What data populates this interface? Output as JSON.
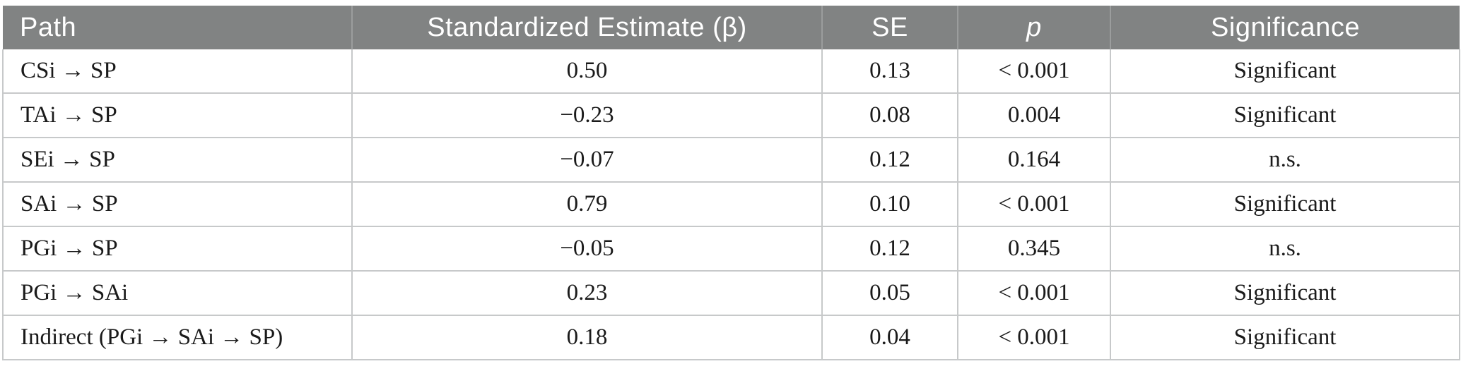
{
  "table": {
    "columns": {
      "path": "Path",
      "estimate": "Standardized Estimate (β)",
      "se": "SE",
      "p": "p",
      "significance": "Significance"
    },
    "rows": [
      {
        "path": "CSi → SP",
        "estimate": "0.50",
        "se": "0.13",
        "p": "< 0.001",
        "significance": "Significant"
      },
      {
        "path": "TAi → SP",
        "estimate": "−0.23",
        "se": "0.08",
        "p": "0.004",
        "significance": "Significant"
      },
      {
        "path": "SEi → SP",
        "estimate": "−0.07",
        "se": "0.12",
        "p": "0.164",
        "significance": "n.s."
      },
      {
        "path": "SAi → SP",
        "estimate": "0.79",
        "se": "0.10",
        "p": "< 0.001",
        "significance": "Significant"
      },
      {
        "path": "PGi → SP",
        "estimate": "−0.05",
        "se": "0.12",
        "p": "0.345",
        "significance": "n.s."
      },
      {
        "path": "PGi → SAi",
        "estimate": "0.23",
        "se": "0.05",
        "p": "< 0.001",
        "significance": "Significant"
      },
      {
        "path": "Indirect (PGi → SAi → SP)",
        "estimate": "0.18",
        "se": "0.04",
        "p": "< 0.001",
        "significance": "Significant"
      }
    ],
    "colors": {
      "header_bg": "#818383",
      "header_text": "#ffffff",
      "header_divider": "#9b9d9d",
      "body_text": "#1a1a1a",
      "rule": "#c7c9ca"
    }
  }
}
